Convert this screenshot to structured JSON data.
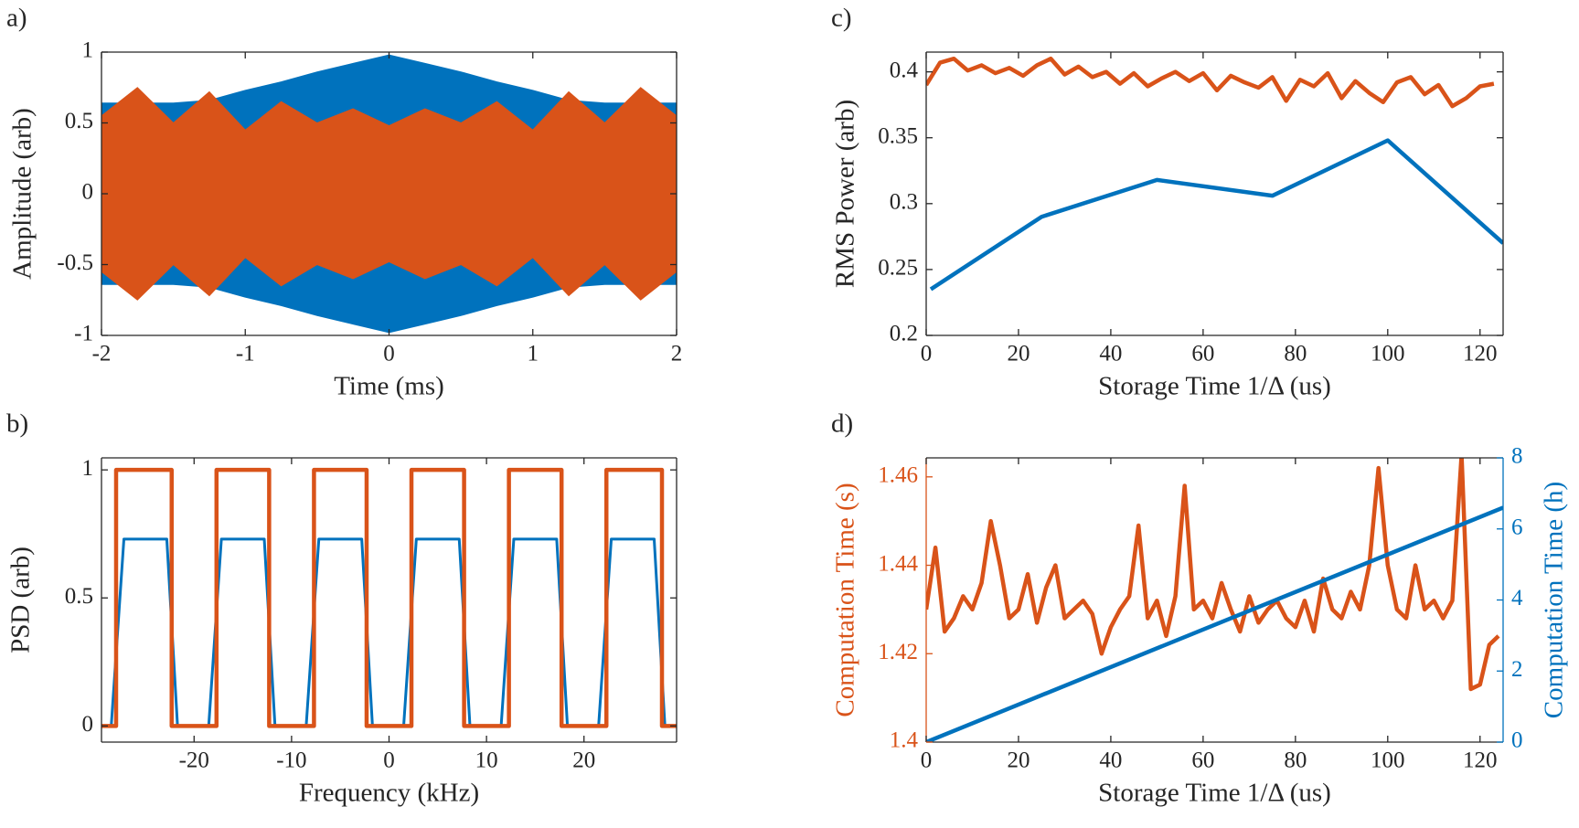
{
  "chart_data": [
    {
      "type": "area",
      "label": "a)",
      "xlabel": "Time (ms)",
      "ylabel": "Amplitude (arb)",
      "xlim": [
        -2,
        2
      ],
      "ylim": [
        -1,
        1
      ],
      "xticks": [
        -2,
        -1,
        0,
        1,
        2
      ],
      "yticks": [
        -1,
        -0.5,
        0,
        0.5,
        1
      ],
      "x": [
        -2,
        -1.75,
        -1.5,
        -1.25,
        -1,
        -0.75,
        -0.5,
        -0.25,
        0,
        0.25,
        0.5,
        0.75,
        1,
        1.25,
        1.5,
        1.75,
        2
      ],
      "series": [
        {
          "color": "#0072bd",
          "upper": [
            0.64,
            0.64,
            0.64,
            0.66,
            0.73,
            0.79,
            0.86,
            0.92,
            0.98,
            0.92,
            0.86,
            0.79,
            0.73,
            0.66,
            0.64,
            0.64,
            0.64
          ],
          "lower": [
            -0.64,
            -0.64,
            -0.64,
            -0.66,
            -0.73,
            -0.79,
            -0.86,
            -0.92,
            -0.98,
            -0.92,
            -0.86,
            -0.79,
            -0.73,
            -0.66,
            -0.64,
            -0.64,
            -0.64
          ]
        },
        {
          "color": "#d95319",
          "upper": [
            0.55,
            0.75,
            0.5,
            0.72,
            0.45,
            0.65,
            0.5,
            0.6,
            0.48,
            0.6,
            0.5,
            0.65,
            0.45,
            0.72,
            0.5,
            0.75,
            0.55
          ],
          "lower": [
            -0.55,
            -0.75,
            -0.5,
            -0.72,
            -0.45,
            -0.65,
            -0.5,
            -0.6,
            -0.48,
            -0.6,
            -0.5,
            -0.65,
            -0.45,
            -0.72,
            -0.5,
            -0.75,
            -0.55
          ]
        }
      ]
    },
    {
      "type": "line",
      "label": "b)",
      "xlabel": "Frequency (kHz)",
      "ylabel": "PSD (arb)",
      "xlim": [
        -29.5,
        29.5
      ],
      "ylim": [
        -0.063,
        1.047
      ],
      "xticks": [
        -20,
        -10,
        0,
        10,
        20
      ],
      "yticks": [
        0,
        0.5,
        1
      ],
      "series": [
        {
          "color": "#0072bd",
          "width": 3,
          "x": [
            -29.5,
            -28.5,
            -27.2,
            -22.8,
            -21.7,
            -18.5,
            -17.2,
            -12.8,
            -11.7,
            -8.5,
            -7.2,
            -2.8,
            -1.7,
            1.5,
            2.8,
            7.2,
            8.3,
            11.5,
            12.8,
            17.2,
            18.3,
            21.5,
            22.8,
            27.2,
            28.3,
            29.5
          ],
          "values": [
            0,
            0,
            0.73,
            0.73,
            0,
            0,
            0.73,
            0.73,
            0,
            0,
            0.73,
            0.73,
            0,
            0,
            0.73,
            0.73,
            0,
            0,
            0.73,
            0.73,
            0,
            0,
            0.73,
            0.73,
            0,
            0
          ]
        },
        {
          "color": "#d95319",
          "width": 4.5,
          "x": [
            -29.5,
            -28,
            -28,
            -22.3,
            -22.3,
            -17.7,
            -17.7,
            -12.3,
            -12.3,
            -7.7,
            -7.7,
            -2.3,
            -2.3,
            2.3,
            2.3,
            7.7,
            7.7,
            12.3,
            12.3,
            17.7,
            17.7,
            22.3,
            22.3,
            28,
            28,
            29.5
          ],
          "values": [
            0,
            0,
            1,
            1,
            0,
            0,
            1,
            1,
            0,
            0,
            1,
            1,
            0,
            0,
            1,
            1,
            0,
            0,
            1,
            1,
            0,
            0,
            1,
            1,
            0,
            0
          ]
        }
      ]
    },
    {
      "type": "line",
      "label": "c)",
      "xlabel": "Storage Time 1/Δ (us)",
      "ylabel": "RMS Power (arb)",
      "xlim": [
        0,
        125
      ],
      "ylim": [
        0.2,
        0.415
      ],
      "xticks": [
        0,
        20,
        40,
        60,
        80,
        100,
        120
      ],
      "yticks": [
        0.2,
        0.25,
        0.3,
        0.35,
        0.4
      ],
      "series": [
        {
          "color": "#d95319",
          "width": 4.5,
          "x": [
            0,
            3,
            6,
            9,
            12,
            15,
            18,
            21,
            24,
            27,
            30,
            33,
            36,
            39,
            42,
            45,
            48,
            51,
            54,
            57,
            60,
            63,
            66,
            69,
            72,
            75,
            78,
            81,
            84,
            87,
            90,
            93,
            96,
            99,
            102,
            105,
            108,
            111,
            114,
            117,
            120,
            123
          ],
          "values": [
            0.39,
            0.407,
            0.41,
            0.401,
            0.405,
            0.399,
            0.403,
            0.397,
            0.405,
            0.41,
            0.398,
            0.404,
            0.396,
            0.4,
            0.391,
            0.399,
            0.389,
            0.395,
            0.4,
            0.393,
            0.399,
            0.386,
            0.397,
            0.392,
            0.388,
            0.396,
            0.378,
            0.394,
            0.389,
            0.399,
            0.38,
            0.393,
            0.384,
            0.377,
            0.392,
            0.396,
            0.383,
            0.39,
            0.374,
            0.38,
            0.389,
            0.391
          ]
        },
        {
          "color": "#0072bd",
          "width": 4.5,
          "x": [
            1,
            25,
            50,
            75,
            100,
            125
          ],
          "values": [
            0.235,
            0.29,
            0.318,
            0.306,
            0.348,
            0.27
          ]
        }
      ]
    },
    {
      "type": "line",
      "label": "d)",
      "xlabel": "Storage Time 1/Δ (us)",
      "ylabel": "Computation Time (s)",
      "y2label": "Computation Time (h)",
      "y_axis_color": "#d95319",
      "y2_axis_color": "#0072bd",
      "xlim": [
        0,
        125
      ],
      "ylim": [
        1.4,
        1.4643
      ],
      "y2lim": [
        0,
        8
      ],
      "xticks": [
        0,
        20,
        40,
        60,
        80,
        100,
        120
      ],
      "yticks": [
        1.4,
        1.42,
        1.44,
        1.46
      ],
      "y2ticks": [
        0,
        2,
        4,
        6,
        8
      ],
      "series": [
        {
          "color": "#d95319",
          "width": 4.5,
          "x": [
            0,
            2,
            4,
            6,
            8,
            10,
            12,
            14,
            16,
            18,
            20,
            22,
            24,
            26,
            28,
            30,
            32,
            34,
            36,
            38,
            40,
            42,
            44,
            46,
            48,
            50,
            52,
            54,
            56,
            58,
            60,
            62,
            64,
            66,
            68,
            70,
            72,
            74,
            76,
            78,
            80,
            82,
            84,
            86,
            88,
            90,
            92,
            94,
            96,
            98,
            100,
            102,
            104,
            106,
            108,
            110,
            112,
            114,
            116,
            118,
            120,
            122,
            124
          ],
          "values": [
            1.43,
            1.444,
            1.425,
            1.428,
            1.433,
            1.43,
            1.436,
            1.45,
            1.44,
            1.428,
            1.43,
            1.438,
            1.427,
            1.435,
            1.44,
            1.428,
            1.43,
            1.432,
            1.429,
            1.42,
            1.426,
            1.43,
            1.433,
            1.449,
            1.428,
            1.432,
            1.424,
            1.433,
            1.458,
            1.43,
            1.432,
            1.428,
            1.436,
            1.43,
            1.425,
            1.433,
            1.427,
            1.43,
            1.432,
            1.428,
            1.426,
            1.432,
            1.425,
            1.437,
            1.43,
            1.428,
            1.434,
            1.43,
            1.44,
            1.462,
            1.44,
            1.43,
            1.428,
            1.44,
            1.43,
            1.432,
            1.428,
            1.432,
            1.465,
            1.412,
            1.413,
            1.422,
            1.424
          ]
        },
        {
          "color": "#0072bd",
          "width": 4.5,
          "axis": "y2",
          "x": [
            0,
            125
          ],
          "values": [
            0,
            6.6
          ]
        }
      ]
    }
  ]
}
